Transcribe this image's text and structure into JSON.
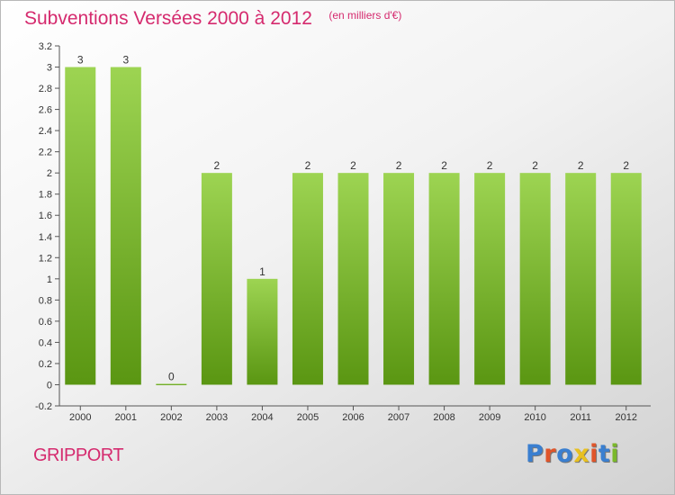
{
  "header": {
    "title": "Subventions Versées 2000 à 2012",
    "unit_note": "(en milliers d'€)"
  },
  "place": "GRIPPORT",
  "logo": {
    "text": "Proxiti",
    "letter_colors": [
      "#3a7fd0",
      "#e0552a",
      "#3a7fd0",
      "#e8c020",
      "#e0552a",
      "#3a7fd0",
      "#7ab82a"
    ]
  },
  "colors": {
    "title": "#d52a6e",
    "bar_light": "#9dd452",
    "bar_dark": "#5a9612",
    "axis": "#555555"
  },
  "chart_data": {
    "type": "bar",
    "title": "Subventions Versées 2000 à 2012",
    "subtitle": "(en milliers d'€)",
    "categories": [
      "2000",
      "2001",
      "2002",
      "2003",
      "2004",
      "2005",
      "2006",
      "2007",
      "2008",
      "2009",
      "2010",
      "2011",
      "2012"
    ],
    "values": [
      3,
      3,
      0,
      2,
      1,
      2,
      2,
      2,
      2,
      2,
      2,
      2,
      2
    ],
    "data_labels": [
      "3",
      "3",
      "0",
      "2",
      "1",
      "2",
      "2",
      "2",
      "2",
      "2",
      "2",
      "2",
      "2"
    ],
    "ylim": [
      -0.2,
      3.2
    ],
    "yticks": [
      -0.2,
      0,
      0.2,
      0.4,
      0.6,
      0.8,
      1,
      1.2,
      1.4,
      1.6,
      1.8,
      2,
      2.2,
      2.4,
      2.6,
      2.8,
      3,
      3.2
    ],
    "ytick_labels": [
      "-0.2",
      "0",
      "0.2",
      "0.4",
      "0.6",
      "0.8",
      "1",
      "1.2",
      "1.4",
      "1.6",
      "1.8",
      "2",
      "2.2",
      "2.4",
      "2.6",
      "2.8",
      "3",
      "3.2"
    ],
    "xlabel": "",
    "ylabel": "",
    "grid": false,
    "legend": "none"
  }
}
